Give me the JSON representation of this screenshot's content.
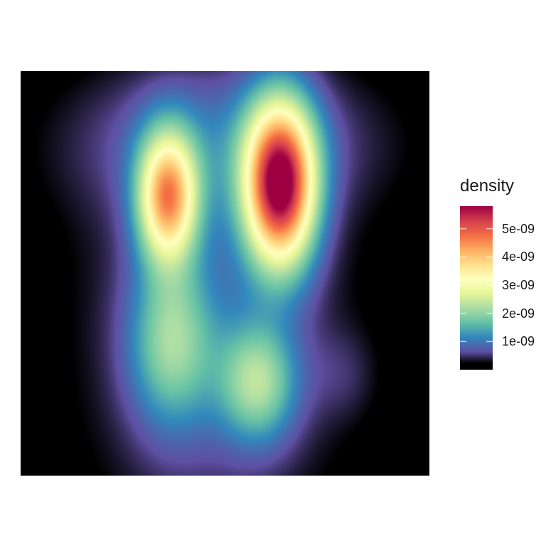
{
  "chart_data": {
    "type": "heatmap",
    "title": "",
    "xlabel": "",
    "ylabel": "",
    "x_range": [
      0,
      1
    ],
    "y_range": [
      0,
      1
    ],
    "grid": false,
    "legend_placement": "right",
    "legend": {
      "title": "density",
      "range": [
        0,
        5.8e-09
      ],
      "ticks": [
        {
          "value": 1e-09,
          "label": "1e-09"
        },
        {
          "value": 2e-09,
          "label": "2e-09"
        },
        {
          "value": 3e-09,
          "label": "3e-09"
        },
        {
          "value": 4e-09,
          "label": "4e-09"
        },
        {
          "value": 5e-09,
          "label": "5e-09"
        }
      ],
      "low_color": "#000000"
    },
    "colormap": [
      "#5E4FA2",
      "#3288BD",
      "#66C2A5",
      "#ABDDA4",
      "#E6F598",
      "#FFFFBF",
      "#FEE08B",
      "#FDAE61",
      "#F46D43",
      "#D53E4F",
      "#9E0142"
    ],
    "density_components": [
      {
        "x": 0.36,
        "y": 0.69,
        "sx": 0.05,
        "sy": 0.11,
        "w": 3.0
      },
      {
        "x": 0.37,
        "y": 0.33,
        "sx": 0.07,
        "sy": 0.14,
        "w": 1.2
      },
      {
        "x": 0.58,
        "y": 0.23,
        "sx": 0.065,
        "sy": 0.1,
        "w": 1.35
      },
      {
        "x": 0.635,
        "y": 0.72,
        "sx": 0.06,
        "sy": 0.14,
        "w": 4.3
      },
      {
        "x": 0.5,
        "y": 0.83,
        "sx": 0.28,
        "sy": 0.14,
        "w": 0.55
      },
      {
        "x": 0.47,
        "y": 0.35,
        "sx": 0.23,
        "sy": 0.38,
        "w": 0.55
      },
      {
        "x": 0.79,
        "y": 0.25,
        "sx": 0.06,
        "sy": 0.08,
        "w": 0.2
      }
    ]
  }
}
